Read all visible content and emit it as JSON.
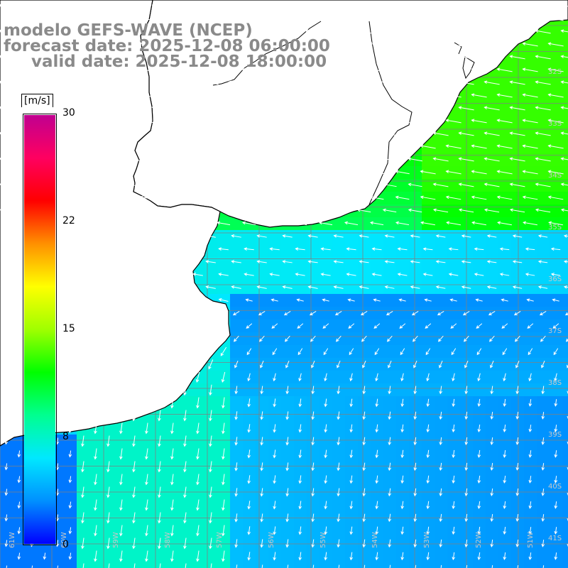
{
  "title": {
    "line1": "modelo GEFS-WAVE (NCEP)",
    "line2": "forecast date: 2025-12-08 06:00:00",
    "line3": "valid date: 2025-12-08 18:00:00"
  },
  "colorbar": {
    "unit": "[m/s]",
    "ticks": [
      "30",
      "22",
      "15",
      "8",
      "0"
    ],
    "tick_values": [
      30,
      22,
      15,
      8,
      0
    ],
    "range": [
      0,
      30
    ],
    "colors": [
      "#0000ff",
      "#0090ff",
      "#00e8ff",
      "#00ff90",
      "#00ff00",
      "#a0ff00",
      "#ffff00",
      "#ff9000",
      "#ff0000",
      "#ff0060",
      "#c00090"
    ]
  },
  "map": {
    "variable": "wind speed and direction",
    "land_color": "#ffffff",
    "coast_color": "#000000",
    "grid_color": "#808080",
    "arrow_color": "#ffffff",
    "lat_labels": [
      "32S",
      "33S",
      "34S",
      "35S",
      "36S",
      "37S",
      "38S",
      "39S",
      "40S",
      "41S"
    ],
    "lon_labels": [
      "61W",
      "60W",
      "59W",
      "58W",
      "57W",
      "56W",
      "55W",
      "54W",
      "53W",
      "52W",
      "51W"
    ]
  }
}
